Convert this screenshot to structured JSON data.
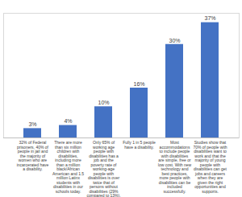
{
  "chart_data": {
    "type": "bar",
    "categories": [
      "32% of Federal prisoners, 40% of people in jail and the majority of women who are incarcerated have a disability.",
      "There are more than six million children with disabilities, including more than a million black/African American and 1.5 million Latinx students with disabilities in our schools today.",
      "Only 65% of working age people with disabilities has a job and the poverty rate of working-age people with disabilities is over twice that of persons without disabilities (29% compared to 13%).",
      "Fully 1 in 5 people have a disability.",
      "Most accommodations to include people with disabilities are simple, free or low cost. With new technology and best practices, more people with disabilities can be included successfully.",
      "Studies show that 70% of people with disabilities want to work and that the majority of young people with disabilities can get jobs and careers when they are given the right opportunities and supports."
    ],
    "values": [
      3,
      4,
      10,
      16,
      30,
      37
    ],
    "value_labels": [
      "3%",
      "4%",
      "10%",
      "16%",
      "30%",
      "37%"
    ],
    "color": "#4472c4",
    "ylim": [
      0,
      40
    ],
    "data_labels": true,
    "tick_labels": "x",
    "grid": false
  }
}
